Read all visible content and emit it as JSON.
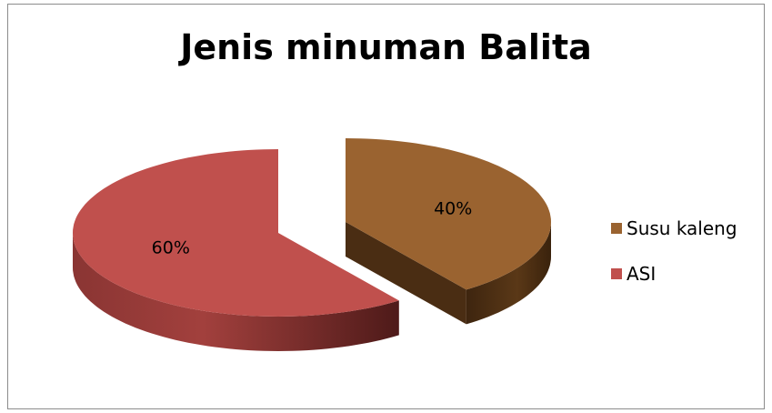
{
  "chart_data": {
    "type": "pie",
    "title": "Jenis minuman Balita",
    "slices": [
      {
        "name": "Susu kaleng",
        "value": 40,
        "label": "40%",
        "color": "#9a6330",
        "side_color": "#4a2d13"
      },
      {
        "name": "ASI",
        "value": 60,
        "label": "60%",
        "color": "#c0504d",
        "side_color": "#6e2523"
      }
    ],
    "legend": "right",
    "style": "3d-exploded"
  }
}
